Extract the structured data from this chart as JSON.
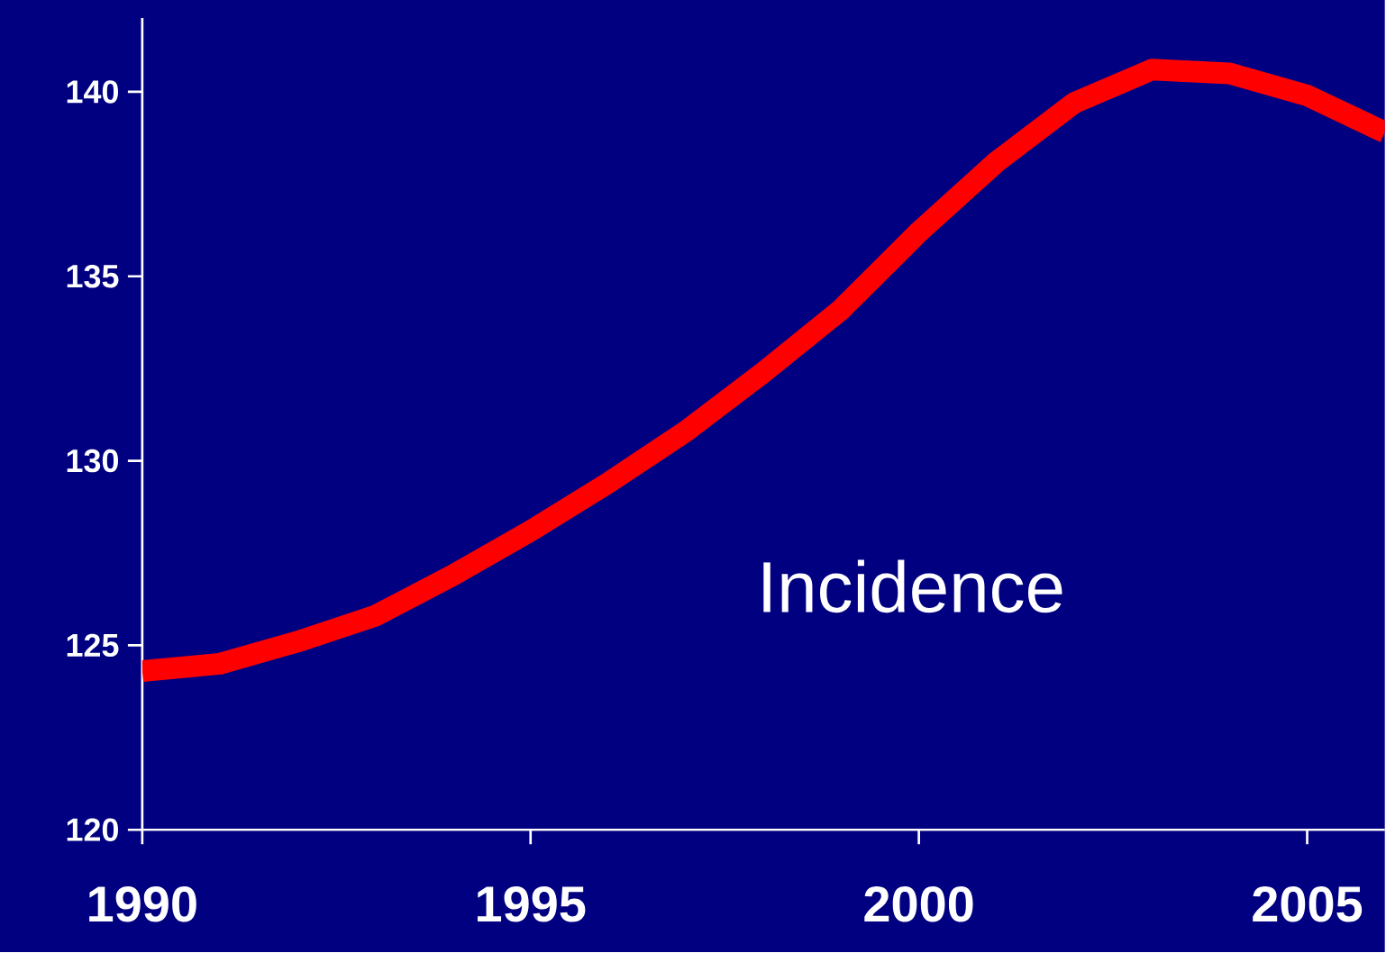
{
  "chart_data": {
    "type": "line",
    "x": [
      1990,
      1991,
      1992,
      1993,
      1994,
      1995,
      1996,
      1997,
      1998,
      1999,
      2000,
      2001,
      2002,
      2003,
      2004,
      2005,
      2006
    ],
    "series": [
      {
        "name": "Incidence",
        "color": "#ff0000",
        "values": [
          124.3,
          124.5,
          125.1,
          125.8,
          126.9,
          128.1,
          129.4,
          130.8,
          132.4,
          134.1,
          136.2,
          138.1,
          139.7,
          140.6,
          140.5,
          139.9,
          138.9
        ]
      }
    ],
    "xlim": [
      1990,
      2006
    ],
    "ylim": [
      120,
      142
    ],
    "xticks": [
      1990,
      1995,
      2000,
      2005
    ],
    "yticks": [
      120,
      125,
      130,
      135,
      140
    ],
    "grid": false,
    "marker": "none",
    "line_style": "solid"
  }
}
